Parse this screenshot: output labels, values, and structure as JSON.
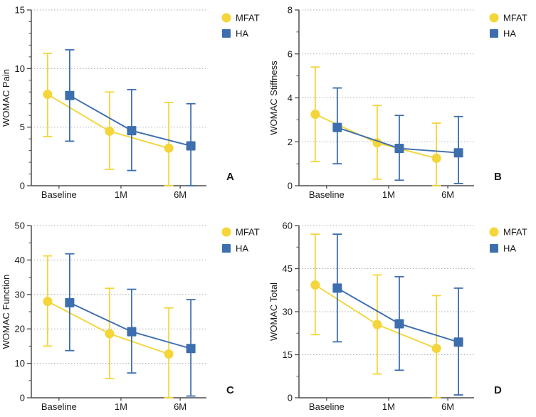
{
  "figure_title": "",
  "groups": [
    "MFAT",
    "HA"
  ],
  "legend": {
    "position": "top-right",
    "items": [
      {
        "label": "MFAT",
        "marker": "circle",
        "color": "#F4D53A"
      },
      {
        "label": "HA",
        "marker": "square",
        "color": "#3D6EAE"
      }
    ]
  },
  "style": {
    "background": "#ffffff",
    "axis_color": "#4D4D4D",
    "grid_color": "#ADADAD",
    "text_color": "#1A1A1A",
    "mfat_color": "#F4D53A",
    "ha_color": "#3D6EAE",
    "grid_style": "dotted-horizontal"
  },
  "chart_data": [
    {
      "type": "line",
      "panel_letter": "A",
      "ylabel": "WOMAC Pain",
      "xlabel": "",
      "ylim": [
        0,
        15
      ],
      "yticks": [
        0,
        5,
        10,
        15
      ],
      "minor_tick_step": 1,
      "grid": true,
      "categories": [
        "Baseline",
        "1M",
        "6M"
      ],
      "series": [
        {
          "name": "MFAT",
          "marker": "circle",
          "color": "#F4D53A",
          "values": [
            7.8,
            4.65,
            3.2
          ],
          "err_lo": [
            4.2,
            1.4,
            0.0
          ],
          "err_hi": [
            11.3,
            8.0,
            7.1
          ]
        },
        {
          "name": "HA",
          "marker": "square",
          "color": "#3D6EAE",
          "values": [
            7.7,
            4.7,
            3.4
          ],
          "err_lo": [
            3.8,
            1.3,
            0.0
          ],
          "err_hi": [
            11.6,
            8.2,
            7.0
          ]
        }
      ]
    },
    {
      "type": "line",
      "panel_letter": "B",
      "ylabel": "WOMAC Stiffness",
      "xlabel": "",
      "ylim": [
        0,
        8
      ],
      "yticks": [
        0,
        2,
        4,
        6,
        8
      ],
      "minor_tick_step": 1,
      "grid": true,
      "categories": [
        "Baseline",
        "1M",
        "6M"
      ],
      "series": [
        {
          "name": "MFAT",
          "marker": "circle",
          "color": "#F4D53A",
          "values": [
            3.25,
            1.95,
            1.25
          ],
          "err_lo": [
            1.1,
            0.3,
            0.0
          ],
          "err_hi": [
            5.4,
            3.65,
            2.85
          ]
        },
        {
          "name": "HA",
          "marker": "square",
          "color": "#3D6EAE",
          "values": [
            2.65,
            1.7,
            1.5
          ],
          "err_lo": [
            1.0,
            0.25,
            0.1
          ],
          "err_hi": [
            4.45,
            3.2,
            3.15
          ]
        }
      ]
    },
    {
      "type": "line",
      "panel_letter": "C",
      "ylabel": "WOMAC Function",
      "xlabel": "",
      "ylim": [
        0,
        50
      ],
      "yticks": [
        0,
        10,
        20,
        30,
        40,
        50
      ],
      "minor_tick_step": 5,
      "grid": true,
      "categories": [
        "Baseline",
        "1M",
        "6M"
      ],
      "series": [
        {
          "name": "MFAT",
          "marker": "circle",
          "color": "#F4D53A",
          "values": [
            28.0,
            18.6,
            12.7
          ],
          "err_lo": [
            15.0,
            5.6,
            0.0
          ],
          "err_hi": [
            41.2,
            31.8,
            26.1
          ]
        },
        {
          "name": "HA",
          "marker": "square",
          "color": "#3D6EAE",
          "values": [
            27.6,
            19.2,
            14.3
          ],
          "err_lo": [
            13.7,
            7.2,
            0.5
          ],
          "err_hi": [
            41.8,
            31.5,
            28.5
          ]
        }
      ]
    },
    {
      "type": "line",
      "panel_letter": "D",
      "ylabel": "WOMAC Total",
      "xlabel": "",
      "ylim": [
        0,
        60
      ],
      "yticks": [
        0,
        15,
        30,
        45,
        60
      ],
      "minor_tick_step": 7.5,
      "grid": true,
      "categories": [
        "Baseline",
        "1M",
        "6M"
      ],
      "series": [
        {
          "name": "MFAT",
          "marker": "circle",
          "color": "#F4D53A",
          "values": [
            39.3,
            25.5,
            17.2
          ],
          "err_lo": [
            22.0,
            8.3,
            0.0
          ],
          "err_hi": [
            57.0,
            42.8,
            35.6
          ]
        },
        {
          "name": "HA",
          "marker": "square",
          "color": "#3D6EAE",
          "values": [
            38.2,
            25.8,
            19.4
          ],
          "err_lo": [
            19.5,
            9.6,
            1.0
          ],
          "err_hi": [
            57.0,
            42.2,
            38.2
          ]
        }
      ]
    }
  ]
}
